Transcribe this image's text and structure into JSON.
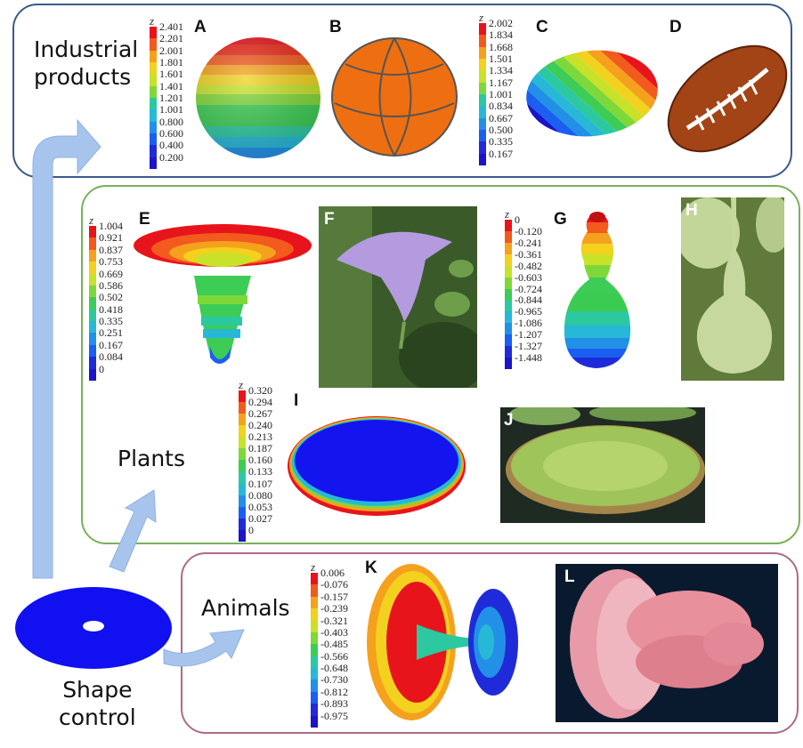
{
  "groups": {
    "industrial": {
      "label_line1": "Industrial",
      "label_line2": "products",
      "border_color": "#3a5a8c"
    },
    "plants": {
      "label": "Plants",
      "border_color": "#7ab05a"
    },
    "animals": {
      "label": "Animals",
      "border_color": "#b06a86"
    },
    "shape_control": {
      "label_line1": "Shape",
      "label_line2": "control"
    }
  },
  "panels": {
    "A": "A",
    "B": "B",
    "C": "C",
    "D": "D",
    "E": "E",
    "F": "F",
    "G": "G",
    "H": "H",
    "I": "I",
    "J": "J",
    "K": "K",
    "L": "L"
  },
  "colorbars": {
    "A": {
      "axis": "z",
      "ticks": [
        "2.401",
        "2.201",
        "2.001",
        "1.801",
        "1.601",
        "1.401",
        "1.201",
        "1.001",
        "0.800",
        "0.600",
        "0.400",
        "0.200"
      ]
    },
    "C": {
      "axis": "z",
      "ticks": [
        "2.002",
        "1.834",
        "1.668",
        "1.501",
        "1.334",
        "1.167",
        "1.001",
        "0.834",
        "0.667",
        "0.500",
        "0.335",
        "0.167"
      ]
    },
    "E": {
      "axis": "z",
      "ticks": [
        "1.004",
        "0.921",
        "0.837",
        "0.753",
        "0.669",
        "0.586",
        "0.502",
        "0.418",
        "0.335",
        "0.251",
        "0.167",
        "0.084",
        "0"
      ]
    },
    "G": {
      "axis": "z",
      "ticks": [
        "0",
        "-0.120",
        "-0.241",
        "-0.361",
        "-0.482",
        "-0.603",
        "-0.724",
        "-0.844",
        "-0.965",
        "-1.086",
        "-1.207",
        "-1.327",
        "-1.448"
      ]
    },
    "I": {
      "axis": "z",
      "ticks": [
        "0.320",
        "0.294",
        "0.267",
        "0.240",
        "0.213",
        "0.187",
        "0.160",
        "0.133",
        "0.107",
        "0.080",
        "0.053",
        "0.027",
        "0"
      ]
    },
    "K": {
      "axis": "z",
      "ticks": [
        "0.006",
        "-0.076",
        "-0.157",
        "-0.239",
        "-0.321",
        "-0.403",
        "-0.485",
        "-0.566",
        "-0.648",
        "-0.730",
        "-0.812",
        "-0.893",
        "-0.975"
      ]
    }
  },
  "colormap": [
    "#e8141b",
    "#f25a1e",
    "#f5a11e",
    "#f2d11f",
    "#c8e22a",
    "#7fd83a",
    "#3dcc55",
    "#2cc8a0",
    "#27b8d8",
    "#2290e6",
    "#1a5ff0",
    "#1f2bd8",
    "#1b14c8"
  ],
  "arrow_color": "#a7c4ec"
}
